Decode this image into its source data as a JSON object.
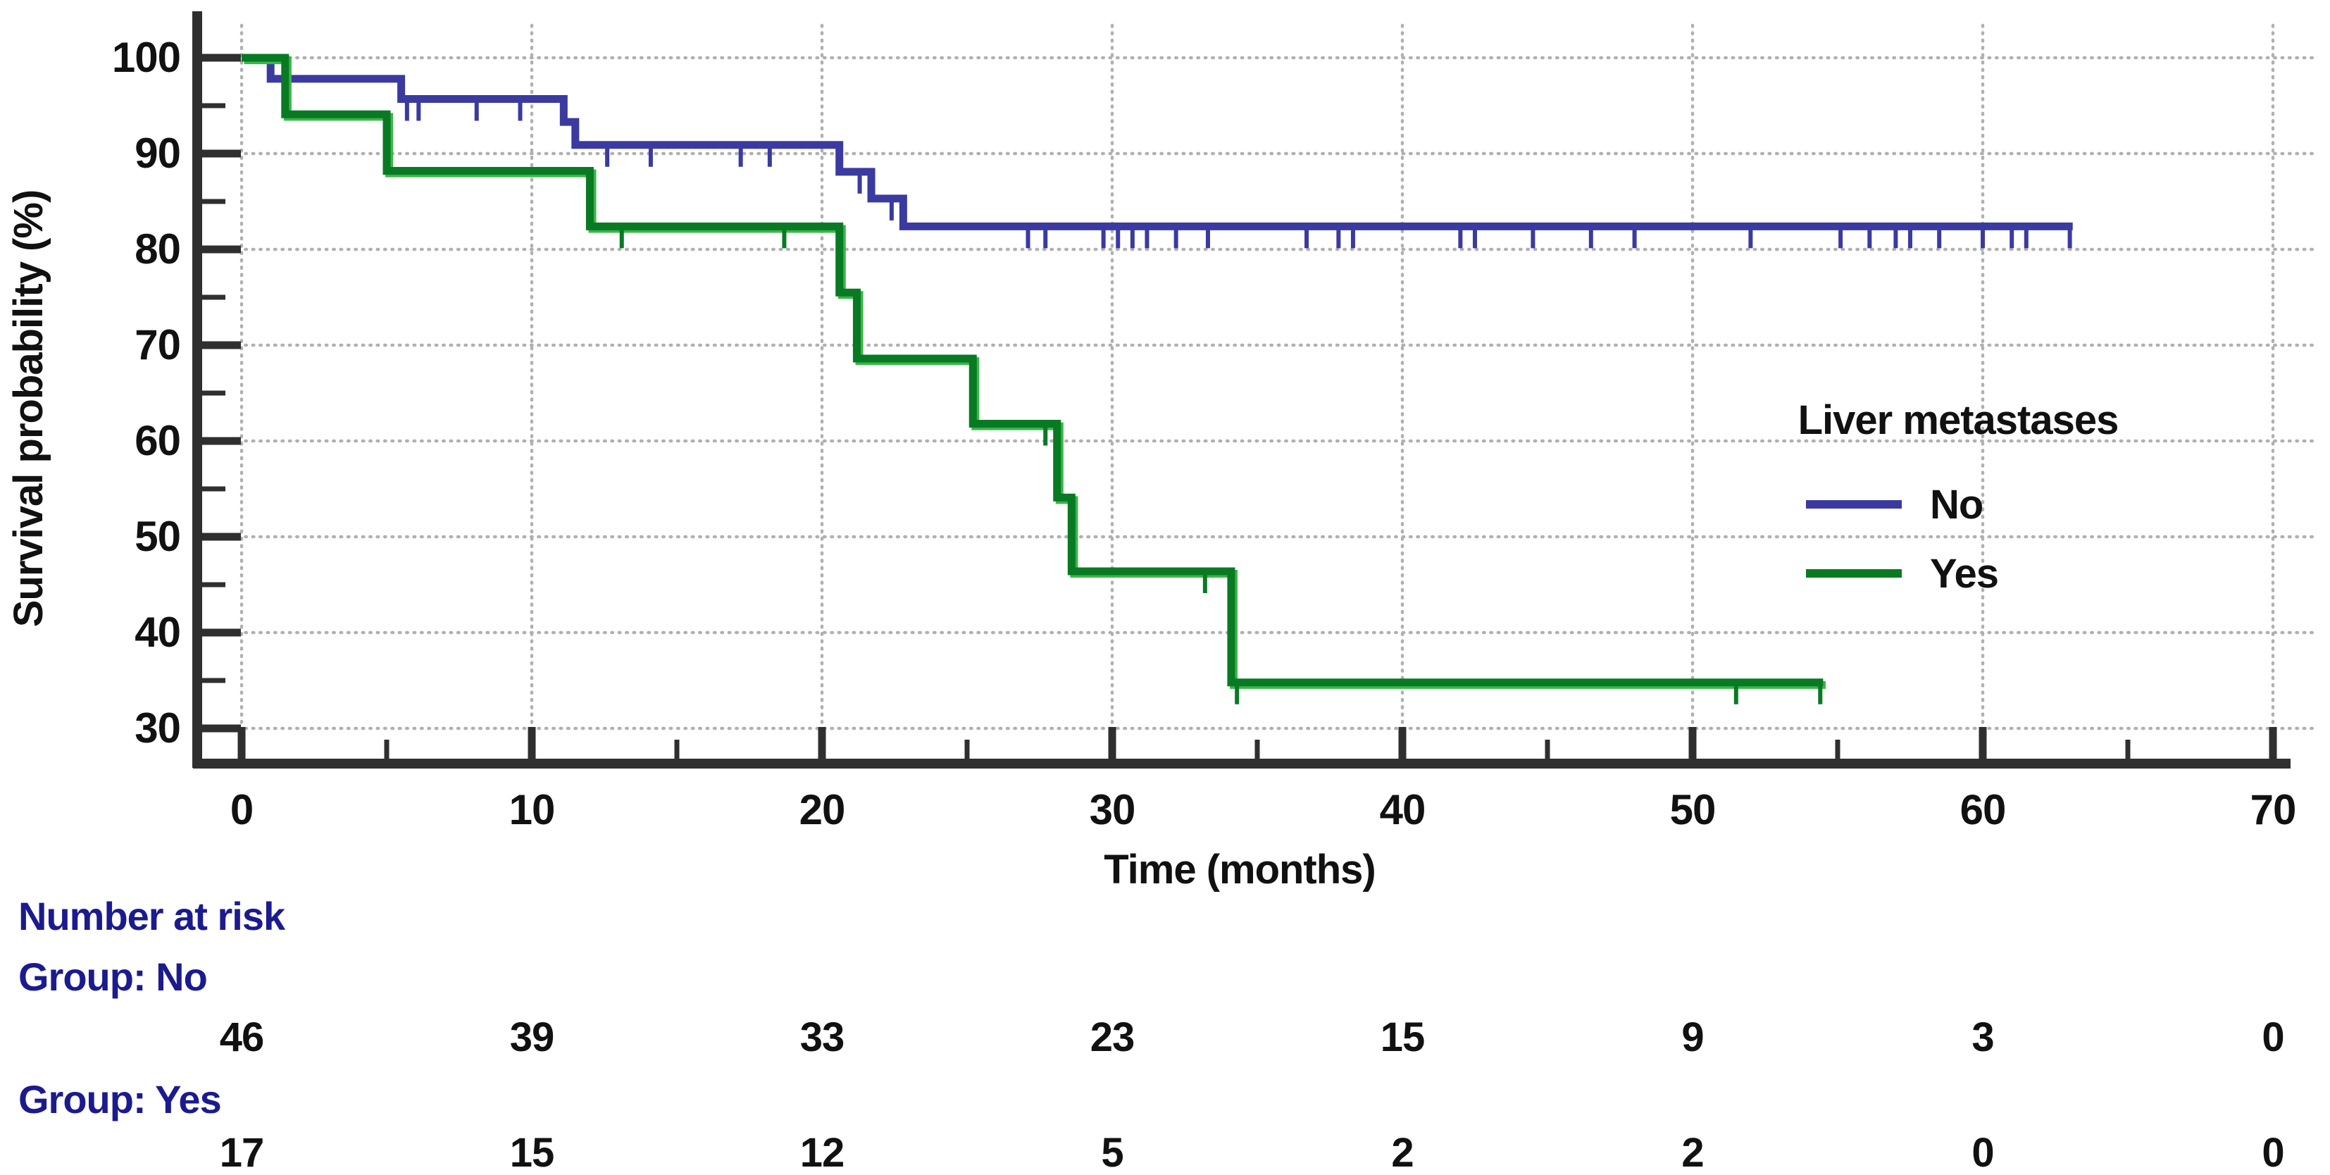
{
  "chart_data": {
    "type": "line",
    "subtype": "kaplan-meier-step",
    "title": "",
    "xlabel": "Time (months)",
    "ylabel": "Survival probability (%)",
    "xlim": [
      0,
      70
    ],
    "ylim": [
      30,
      100
    ],
    "x_ticks": [
      0,
      10,
      20,
      30,
      40,
      50,
      60,
      70
    ],
    "x_minor_ticks": [
      5,
      15,
      25,
      35,
      45,
      55,
      65
    ],
    "y_ticks": [
      100,
      90,
      80,
      70,
      60,
      50,
      40,
      30
    ],
    "y_minor_ticks": [
      95,
      85,
      75,
      65,
      55,
      45,
      35
    ],
    "grid": "dotted",
    "legend_position": "right",
    "series": [
      {
        "name": "No",
        "color": "#3a3aa0",
        "start": [
          0,
          100
        ],
        "steps": [
          [
            1.0,
            97.8
          ],
          [
            5.5,
            95.7
          ],
          [
            11.1,
            93.3
          ],
          [
            11.5,
            90.9
          ],
          [
            20.6,
            88.1
          ],
          [
            21.7,
            85.3
          ],
          [
            22.8,
            82.4
          ]
        ],
        "end_time": 63.1,
        "censor_marks": [
          [
            5.7,
            95.7
          ],
          [
            6.1,
            95.7
          ],
          [
            8.1,
            95.7
          ],
          [
            9.6,
            95.7
          ],
          [
            12.6,
            90.9
          ],
          [
            14.1,
            90.9
          ],
          [
            17.2,
            90.9
          ],
          [
            18.2,
            90.9
          ],
          [
            21.3,
            88.1
          ],
          [
            22.4,
            85.3
          ],
          [
            27.1,
            82.4
          ],
          [
            27.7,
            82.4
          ],
          [
            29.7,
            82.4
          ],
          [
            30.2,
            82.4
          ],
          [
            30.7,
            82.4
          ],
          [
            31.2,
            82.4
          ],
          [
            32.2,
            82.4
          ],
          [
            33.3,
            82.4
          ],
          [
            36.7,
            82.4
          ],
          [
            37.8,
            82.4
          ],
          [
            38.3,
            82.4
          ],
          [
            42.0,
            82.4
          ],
          [
            42.5,
            82.4
          ],
          [
            44.5,
            82.4
          ],
          [
            46.5,
            82.4
          ],
          [
            48.0,
            82.4
          ],
          [
            52.0,
            82.4
          ],
          [
            55.1,
            82.4
          ],
          [
            56.1,
            82.4
          ],
          [
            57.0,
            82.4
          ],
          [
            57.5,
            82.4
          ],
          [
            58.5,
            82.4
          ],
          [
            60.0,
            82.4
          ],
          [
            61.0,
            82.4
          ],
          [
            61.5,
            82.4
          ],
          [
            63.0,
            82.4
          ]
        ]
      },
      {
        "name": "Yes",
        "color": "#087a23",
        "halo_color": "#3db54a",
        "start": [
          0,
          100
        ],
        "steps": [
          [
            1.5,
            94.1
          ],
          [
            5.0,
            88.2
          ],
          [
            12.0,
            82.4
          ],
          [
            20.6,
            75.5
          ],
          [
            21.2,
            68.6
          ],
          [
            25.2,
            61.8
          ],
          [
            28.1,
            54.1
          ],
          [
            28.6,
            46.4
          ],
          [
            34.1,
            34.8
          ]
        ],
        "end_time": 54.5,
        "censor_marks": [
          [
            13.1,
            82.4
          ],
          [
            18.7,
            82.4
          ],
          [
            27.7,
            61.8
          ],
          [
            33.2,
            46.4
          ],
          [
            34.3,
            34.8
          ],
          [
            51.5,
            34.8
          ],
          [
            54.4,
            34.8
          ]
        ]
      }
    ],
    "risk_table": {
      "header": "Number at risk",
      "times": [
        0,
        10,
        20,
        30,
        40,
        50,
        60,
        70
      ],
      "rows": [
        {
          "label": "Group: No",
          "counts": [
            46,
            39,
            33,
            23,
            15,
            9,
            3,
            0
          ]
        },
        {
          "label": "Group: Yes",
          "counts": [
            17,
            15,
            12,
            5,
            2,
            2,
            0,
            0
          ]
        }
      ]
    }
  },
  "legend": {
    "title": "Liver metastases",
    "items": [
      {
        "label": "No",
        "color": "#3a3aa0"
      },
      {
        "label": "Yes",
        "color": "#087a23"
      }
    ]
  },
  "colors": {
    "axis": "#2f2f2f",
    "grid": "#b0b0b0",
    "risk_label_text": "#1b1b8f",
    "tick_text": "#111111"
  }
}
